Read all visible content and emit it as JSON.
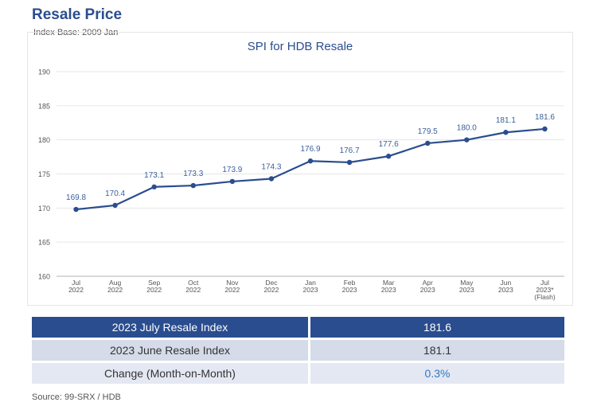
{
  "header": {
    "title": "Resale Price",
    "subtitle": "Index Base: 2009 Jan"
  },
  "chart_data": {
    "type": "line",
    "title": "SPI for HDB Resale",
    "xlabel": "",
    "ylabel": "",
    "ylim": [
      160,
      190
    ],
    "yticks": [
      160,
      165,
      170,
      175,
      180,
      185,
      190
    ],
    "grid": true,
    "categories": [
      [
        "Jul",
        "2022"
      ],
      [
        "Aug",
        "2022"
      ],
      [
        "Sep",
        "2022"
      ],
      [
        "Oct",
        "2022"
      ],
      [
        "Nov",
        "2022"
      ],
      [
        "Dec",
        "2022"
      ],
      [
        "Jan",
        "2023"
      ],
      [
        "Feb",
        "2023"
      ],
      [
        "Mar",
        "2023"
      ],
      [
        "Apr",
        "2023"
      ],
      [
        "May",
        "2023"
      ],
      [
        "Jun",
        "2023"
      ],
      [
        "Jul",
        "2023*",
        "(Flash)"
      ]
    ],
    "series": [
      {
        "values": [
          169.8,
          170.4,
          173.1,
          173.3,
          173.9,
          174.3,
          176.9,
          176.7,
          177.6,
          179.5,
          180.0,
          181.1,
          181.6
        ],
        "labels": [
          "169.8",
          "170.4",
          "173.1",
          "173.3",
          "173.9",
          "174.3",
          "176.9",
          "176.7",
          "177.6",
          "179.5",
          "180.0",
          "181.1",
          "181.6"
        ],
        "color": "#2a4d8f"
      }
    ]
  },
  "summary_table": {
    "rows": [
      {
        "label": "2023 July Resale Index",
        "value": "181.6"
      },
      {
        "label": "2023 June Resale Index",
        "value": "181.1"
      },
      {
        "label": "Change (Month-on-Month)",
        "value": "0.3%"
      }
    ]
  },
  "footer": {
    "source": "Source: 99-SRX / HDB"
  },
  "colors": {
    "brand": "#2a4d8f",
    "line": "#2a4d8f",
    "label": "#3a5f9c",
    "accent": "#2f78c4"
  }
}
